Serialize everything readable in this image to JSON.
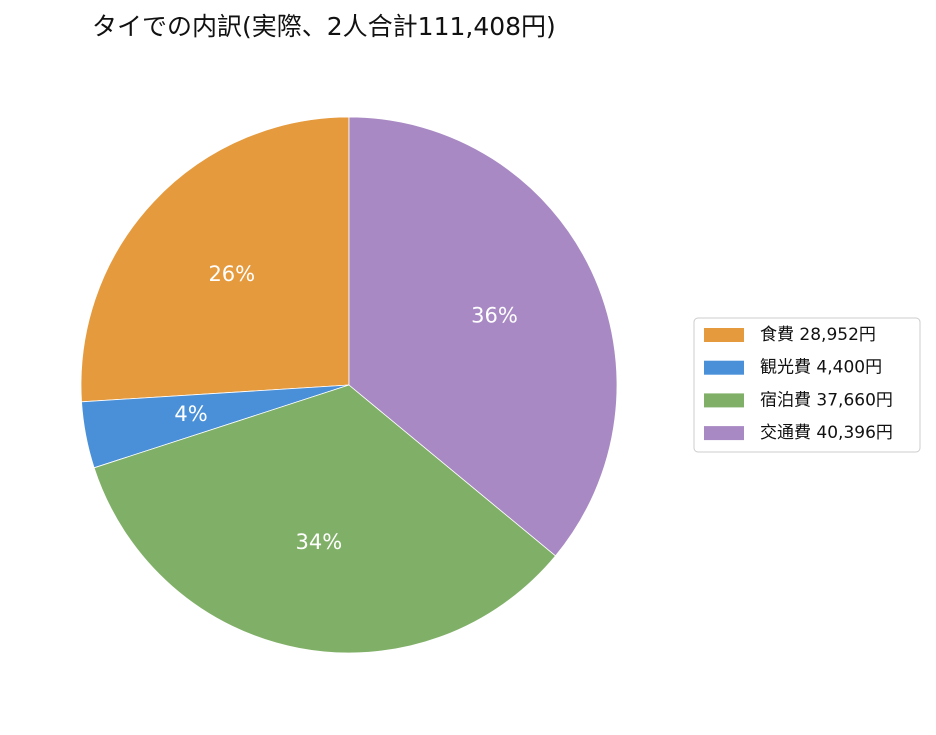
{
  "chart_data": {
    "type": "pie",
    "title": "タイでの内訳(実際、2人合計111,408円)",
    "categories": [
      "食費 28,952円",
      "観光費 4,400円",
      "宿泊費 37,660円",
      "交通費 40,396円"
    ],
    "values": [
      26,
      4,
      34,
      36
    ],
    "value_labels": [
      "26%",
      "4%",
      "34%",
      "36%"
    ],
    "colors": [
      "#e59a3e",
      "#4a90d9",
      "#80b068",
      "#a889c4"
    ],
    "start_angle": 90,
    "direction": "counterclockwise",
    "legend": "right"
  }
}
